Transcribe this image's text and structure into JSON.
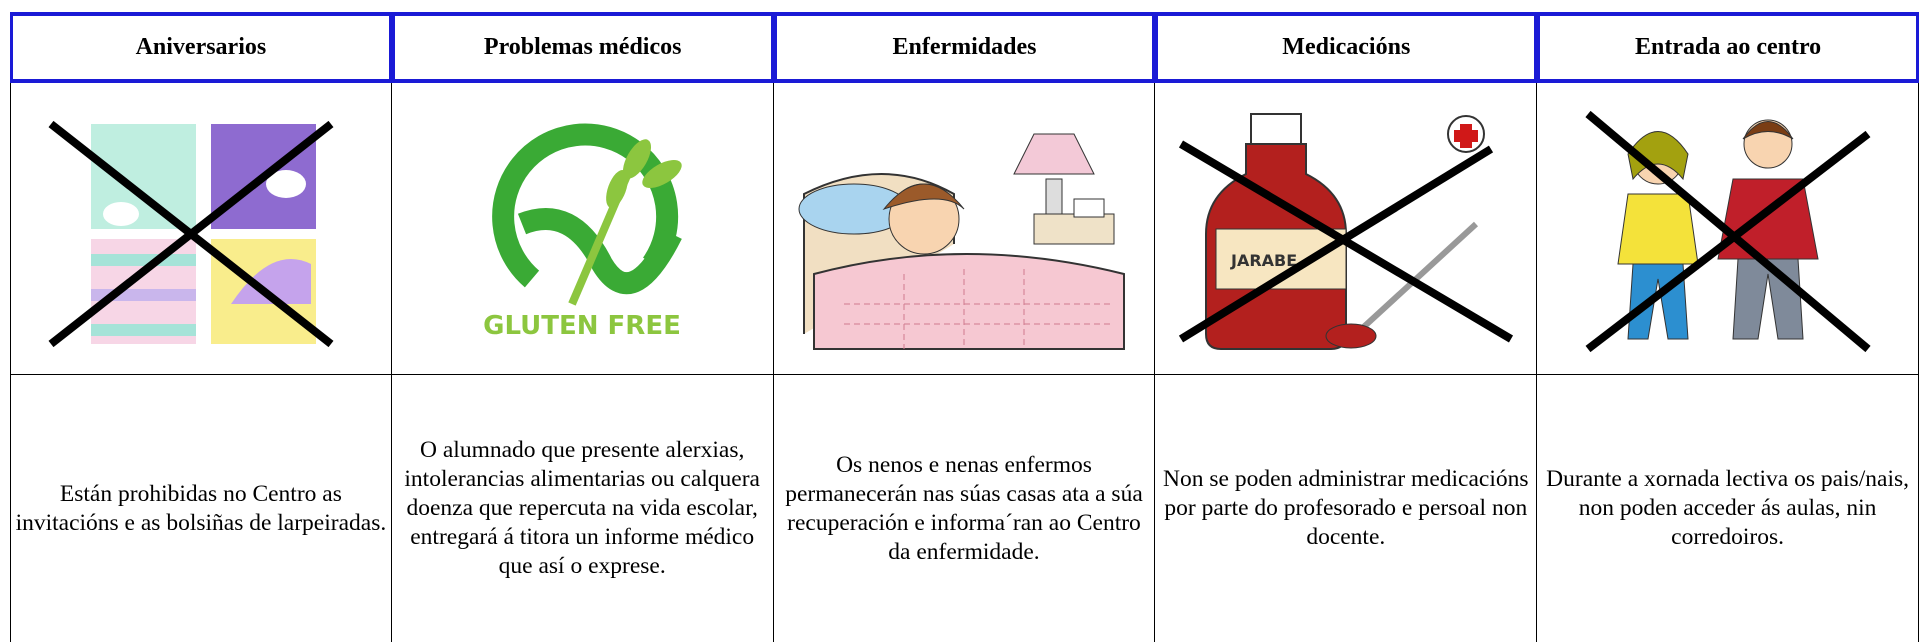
{
  "columns": [
    {
      "header": "Aniversarios",
      "text": "Están prohibidas no Centro as invitacións e as bolsiñas de larpeiradas."
    },
    {
      "header": "Problemas médicos",
      "image_text": "GLUTEN FREE",
      "text": "O alumnado que presente alerxias, intolerancias alimentarias ou calquera doenza que repercuta na vida escolar, entregará á titora un informe médico que así o exprese."
    },
    {
      "header": "Enfermidades",
      "text": "Os nenos e nenas enfermos permanecerán nas súas casas ata a súa recuperación e informa´ran ao Centro da enfermidade."
    },
    {
      "header": "Medicacións",
      "image_text": "JARABE",
      "text": "Non se poden administrar medicacións por parte do profesorado e persoal non docente."
    },
    {
      "header": "Entrada ao centro",
      "text": "Durante a xornada lectiva os pais/nais, non poden acceder ás aulas, nin corredoiros."
    }
  ]
}
